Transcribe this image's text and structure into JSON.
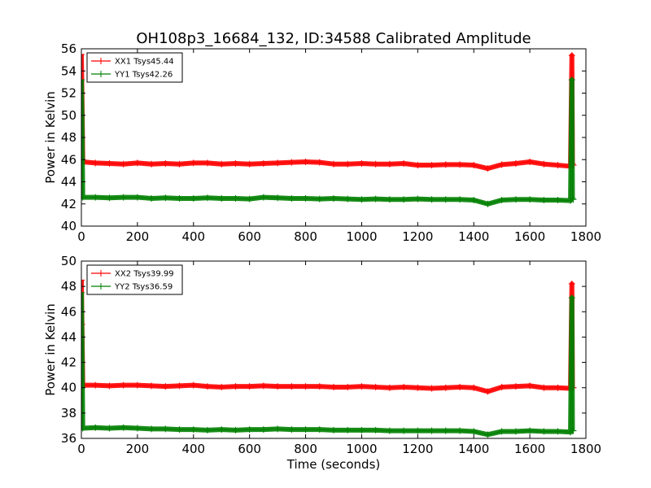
{
  "chart_data": {
    "type": "line",
    "title": "OH108p3_16684_132, ID:34588 Calibrated Amplitude",
    "xlabel": "Time (seconds)",
    "colors": {
      "XX": "#ff0000",
      "YY": "#008000"
    },
    "legend_position": "top-left",
    "grid": false,
    "panels": [
      {
        "xlim": [
          0,
          1800
        ],
        "ylim": [
          40,
          56
        ],
        "xticks": [
          0,
          200,
          400,
          600,
          800,
          1000,
          1200,
          1400,
          1600,
          1800
        ],
        "yticks": [
          40,
          42,
          44,
          46,
          48,
          50,
          52,
          54,
          56
        ],
        "ylabel": "Power in Kelvin",
        "show_xlabel": false,
        "series": [
          {
            "name": "XX1 Tsys45.44",
            "color": "#ff0000",
            "x": [
              0,
              2,
              5,
              50,
              100,
              150,
              200,
              250,
              300,
              350,
              400,
              450,
              500,
              550,
              600,
              650,
              700,
              750,
              800,
              850,
              900,
              950,
              1000,
              1050,
              1100,
              1150,
              1200,
              1250,
              1300,
              1350,
              1400,
              1450,
              1500,
              1550,
              1600,
              1650,
              1700,
              1745,
              1750,
              1752,
              1755
            ],
            "y": [
              55.5,
              52.0,
              45.8,
              45.7,
              45.65,
              45.6,
              45.7,
              45.6,
              45.65,
              45.6,
              45.7,
              45.7,
              45.6,
              45.65,
              45.6,
              45.65,
              45.7,
              45.75,
              45.8,
              45.75,
              45.6,
              45.6,
              45.65,
              45.6,
              45.6,
              45.65,
              45.5,
              45.5,
              45.55,
              45.55,
              45.5,
              45.2,
              45.55,
              45.65,
              45.8,
              45.6,
              45.5,
              45.4,
              55.4,
              45.6,
              45.5
            ]
          },
          {
            "name": "YY1 Tsys42.26",
            "color": "#008000",
            "x": [
              0,
              2,
              5,
              50,
              100,
              150,
              200,
              250,
              300,
              350,
              400,
              450,
              500,
              550,
              600,
              650,
              700,
              750,
              800,
              850,
              900,
              950,
              1000,
              1050,
              1100,
              1150,
              1200,
              1250,
              1300,
              1350,
              1400,
              1450,
              1500,
              1550,
              1600,
              1650,
              1700,
              1745,
              1750,
              1752,
              1755
            ],
            "y": [
              53.2,
              50.0,
              42.6,
              42.6,
              42.55,
              42.6,
              42.6,
              42.5,
              42.55,
              42.5,
              42.5,
              42.55,
              42.5,
              42.5,
              42.45,
              42.6,
              42.55,
              42.5,
              42.5,
              42.45,
              42.5,
              42.45,
              42.4,
              42.45,
              42.4,
              42.4,
              42.45,
              42.4,
              42.4,
              42.4,
              42.35,
              42.0,
              42.35,
              42.4,
              42.4,
              42.35,
              42.35,
              42.3,
              53.2,
              42.5,
              42.4
            ]
          }
        ]
      },
      {
        "xlim": [
          0,
          1800
        ],
        "ylim": [
          36,
          50
        ],
        "xticks": [
          0,
          200,
          400,
          600,
          800,
          1000,
          1200,
          1400,
          1600,
          1800
        ],
        "yticks": [
          36,
          38,
          40,
          42,
          44,
          46,
          48,
          50
        ],
        "ylabel": "Power in Kelvin",
        "show_xlabel": true,
        "series": [
          {
            "name": "XX2 Tsys39.99",
            "color": "#ff0000",
            "x": [
              0,
              2,
              5,
              50,
              100,
              150,
              200,
              250,
              300,
              350,
              400,
              450,
              500,
              550,
              600,
              650,
              700,
              750,
              800,
              850,
              900,
              950,
              1000,
              1050,
              1100,
              1150,
              1200,
              1250,
              1300,
              1350,
              1400,
              1450,
              1500,
              1550,
              1600,
              1650,
              1700,
              1745,
              1750,
              1752,
              1755
            ],
            "y": [
              48.5,
              45.0,
              40.2,
              40.2,
              40.15,
              40.2,
              40.2,
              40.15,
              40.1,
              40.15,
              40.2,
              40.1,
              40.05,
              40.1,
              40.1,
              40.15,
              40.1,
              40.1,
              40.1,
              40.1,
              40.05,
              40.05,
              40.1,
              40.05,
              40.0,
              40.05,
              40.0,
              39.95,
              40.0,
              40.05,
              40.0,
              39.7,
              40.05,
              40.1,
              40.15,
              40.0,
              40.0,
              39.95,
              48.2,
              40.0,
              40.0
            ]
          },
          {
            "name": "YY2 Tsys36.59",
            "color": "#008000",
            "x": [
              0,
              2,
              5,
              50,
              100,
              150,
              200,
              250,
              300,
              350,
              400,
              450,
              500,
              550,
              600,
              650,
              700,
              750,
              800,
              850,
              900,
              950,
              1000,
              1050,
              1100,
              1150,
              1200,
              1250,
              1300,
              1350,
              1400,
              1450,
              1500,
              1550,
              1600,
              1650,
              1700,
              1745,
              1750,
              1752,
              1755
            ],
            "y": [
              47.5,
              44.0,
              36.8,
              36.85,
              36.8,
              36.85,
              36.8,
              36.75,
              36.75,
              36.7,
              36.7,
              36.65,
              36.7,
              36.65,
              36.7,
              36.7,
              36.75,
              36.7,
              36.7,
              36.7,
              36.65,
              36.65,
              36.65,
              36.65,
              36.6,
              36.6,
              36.6,
              36.6,
              36.6,
              36.6,
              36.55,
              36.3,
              36.55,
              36.55,
              36.6,
              36.55,
              36.55,
              36.5,
              47.1,
              36.6,
              36.6
            ]
          }
        ]
      }
    ]
  }
}
